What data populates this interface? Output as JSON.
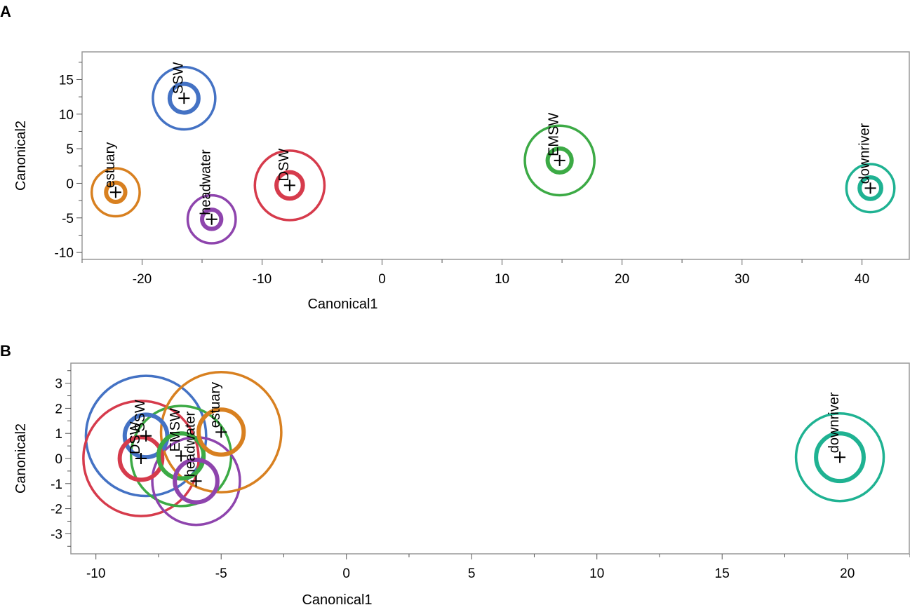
{
  "chart_data": [
    {
      "panel": "A",
      "type": "scatter",
      "xlabel": "Canonical1",
      "ylabel": "Canonical2",
      "xlim": [
        -25,
        44
      ],
      "ylim": [
        -11,
        19
      ],
      "xticks": [
        -20,
        -10,
        0,
        10,
        20,
        30,
        40
      ],
      "yticks": [
        -10,
        -5,
        0,
        5,
        10,
        15
      ],
      "grid": false,
      "groups": [
        {
          "name": "SSW",
          "color": "#4472c4",
          "x": -16.5,
          "y": 12.3,
          "inner_r": 1.2,
          "outer_r": 2.6
        },
        {
          "name": "estuary",
          "color": "#d88020",
          "x": -22.2,
          "y": -1.3,
          "inner_r": 0.8,
          "outer_r": 2.0
        },
        {
          "name": "headwater",
          "color": "#8e44ad",
          "x": -14.2,
          "y": -5.2,
          "inner_r": 0.8,
          "outer_r": 2.0
        },
        {
          "name": "DSW",
          "color": "#d63b4c",
          "x": -7.7,
          "y": -0.3,
          "inner_r": 1.1,
          "outer_r": 2.9
        },
        {
          "name": "EMSW",
          "color": "#3caa45",
          "x": 14.8,
          "y": 3.3,
          "inner_r": 1.0,
          "outer_r": 2.9
        },
        {
          "name": "downriver",
          "color": "#1fb292",
          "x": 40.7,
          "y": -0.7,
          "inner_r": 0.9,
          "outer_r": 2.0
        }
      ]
    },
    {
      "panel": "B",
      "type": "scatter",
      "xlabel": "Canonical1",
      "ylabel": "Canonical2",
      "xlim": [
        -11,
        22.5
      ],
      "ylim": [
        -3.8,
        3.8
      ],
      "xticks": [
        -10,
        -5,
        0,
        5,
        10,
        15,
        20
      ],
      "yticks": [
        -3,
        -2,
        -1,
        0,
        1,
        2,
        3
      ],
      "grid": false,
      "groups": [
        {
          "name": "SSW",
          "color": "#4472c4",
          "x": -8.0,
          "y": 0.9,
          "inner_r": 0.85,
          "outer_r": 2.4
        },
        {
          "name": "DSW",
          "color": "#d63b4c",
          "x": -8.2,
          "y": 0.0,
          "inner_r": 0.85,
          "outer_r": 2.3
        },
        {
          "name": "EMSW",
          "color": "#3caa45",
          "x": -6.6,
          "y": 0.1,
          "inner_r": 0.9,
          "outer_r": 2.0
        },
        {
          "name": "headwater",
          "color": "#8e44ad",
          "x": -6.0,
          "y": -0.9,
          "inner_r": 0.85,
          "outer_r": 1.75
        },
        {
          "name": "estuary",
          "color": "#d88020",
          "x": -5.0,
          "y": 1.05,
          "inner_r": 0.9,
          "outer_r": 2.4
        },
        {
          "name": "downriver",
          "color": "#1fb292",
          "x": 19.7,
          "y": 0.05,
          "inner_r": 0.95,
          "outer_r": 1.75
        }
      ]
    }
  ]
}
